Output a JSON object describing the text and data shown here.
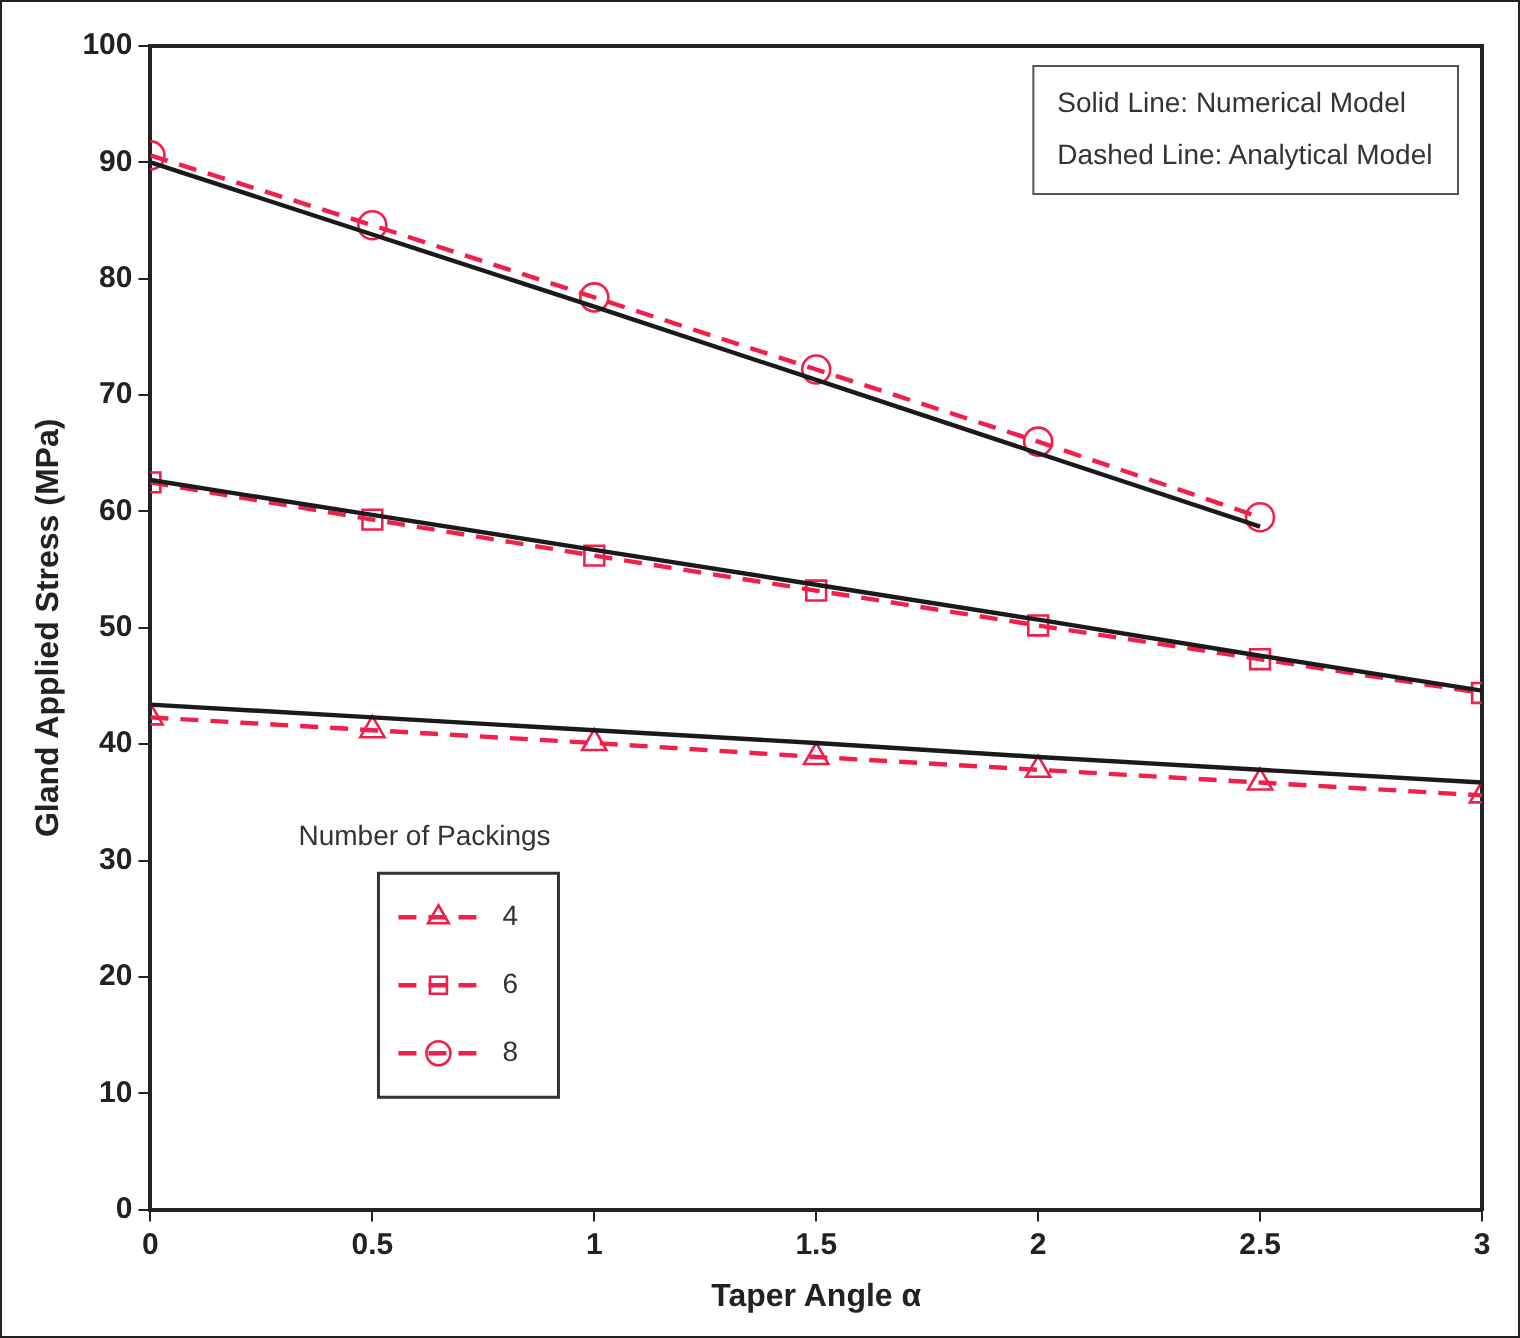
{
  "chart_data": {
    "type": "line",
    "xlabel": "Taper Angle α",
    "ylabel": "Gland Applied Stress (MPa)",
    "x": [
      0,
      0.5,
      1,
      1.5,
      2,
      2.5,
      3
    ],
    "xlim": [
      0,
      3
    ],
    "xticks": [
      0,
      0.5,
      1,
      1.5,
      2,
      2.5,
      3
    ],
    "ylim": [
      0,
      100
    ],
    "yticks": [
      0,
      10,
      20,
      30,
      40,
      50,
      60,
      70,
      80,
      90,
      100
    ],
    "grid": false,
    "legend": "bottom left",
    "legend_title": "Number of Packings",
    "annotations": [
      "Solid Line: Numerical Model",
      "Dashed Line: Analytical Model"
    ],
    "series": [
      {
        "color": "#1a1a1a",
        "line_style": "solid",
        "marker": "none",
        "values": [
          43.4,
          42.3,
          41.2,
          40.1,
          38.9,
          37.8,
          36.7
        ]
      },
      {
        "color": "#1a1a1a",
        "line_style": "solid",
        "marker": "none",
        "values": [
          62.7,
          59.7,
          56.7,
          53.7,
          50.7,
          47.6,
          44.6
        ]
      },
      {
        "color": "#1a1a1a",
        "line_style": "solid",
        "marker": "none",
        "values": [
          90.0,
          83.8,
          77.6,
          71.3,
          65.0,
          58.7,
          null
        ]
      },
      {
        "name": "4",
        "color": "#f0204a",
        "line_style": "dashed",
        "marker": "triangle",
        "values": [
          42.3,
          41.2,
          40.1,
          38.9,
          37.8,
          36.7,
          35.6
        ]
      },
      {
        "name": "6",
        "color": "#f0204a",
        "line_style": "dashed",
        "marker": "square",
        "values": [
          62.5,
          59.3,
          56.2,
          53.2,
          50.2,
          47.3,
          44.4
        ]
      },
      {
        "name": "8",
        "color": "#f0204a",
        "line_style": "dashed",
        "marker": "circle",
        "values": [
          90.6,
          84.6,
          78.4,
          72.2,
          66.0,
          59.5,
          null
        ]
      }
    ]
  }
}
